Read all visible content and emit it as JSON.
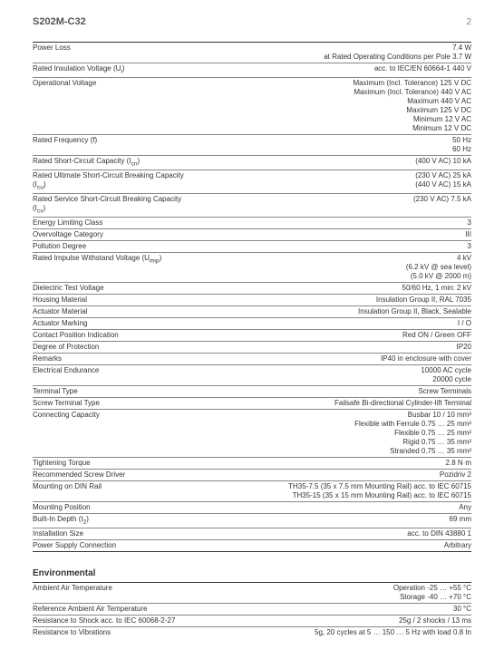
{
  "header": {
    "title": "S202M-C32",
    "page_number": "2"
  },
  "main_rows": [
    {
      "label": "Power Loss",
      "values": [
        "7.4 W",
        "at Rated Operating Conditions per Pole 3.7 W"
      ]
    },
    {
      "label": "Rated Insulation Voltage (U<sub>i</sub>)",
      "values": [
        "acc. to IEC/EN 60664-1 440 V"
      ]
    },
    {
      "label": "Operational Voltage",
      "values": [
        "Maximum (Incl. Tolerance) 125 V DC",
        "Maximum (Incl. Tolerance) 440 V AC",
        "Maximum 440 V AC",
        "Maximum 125 V DC",
        "Minimum 12 V AC",
        "Minimum 12 V DC"
      ]
    },
    {
      "label": "Rated Frequency (f)",
      "values": [
        "50 Hz",
        "60 Hz"
      ]
    },
    {
      "label": "Rated Short-Circuit Capacity (I<sub>cn</sub>)",
      "values": [
        "(400 V AC) 10 kA"
      ]
    },
    {
      "label": "Rated Ultimate Short-Circuit Breaking Capacity (I<sub>cu</sub>)",
      "values": [
        "(230 V AC) 25 kA",
        "(440 V AC) 15 kA"
      ]
    },
    {
      "label": "Rated Service Short-Circuit Breaking Capacity (I<sub>cs</sub>)",
      "values": [
        "(230 V AC) 7.5 kA"
      ]
    },
    {
      "label": "Energy Limiting Class",
      "values": [
        "3"
      ]
    },
    {
      "label": "Overvoltage Category",
      "values": [
        "III"
      ]
    },
    {
      "label": "Pollution Degree",
      "values": [
        "3"
      ]
    },
    {
      "label": "Rated Impulse Withstand Voltage (U<sub>imp</sub>)",
      "values": [
        "4 kV",
        "(6.2 kV @ sea level)",
        "(5.0 kV @ 2000 m)"
      ]
    },
    {
      "label": "Dielectric Test Voltage",
      "values": [
        "50/60 Hz, 1 min: 2 kV"
      ]
    },
    {
      "label": "Housing Material",
      "values": [
        "Insulation Group II, RAL 7035"
      ]
    },
    {
      "label": "Actuator Material",
      "values": [
        "Insulation Group II, Black, Sealable"
      ]
    },
    {
      "label": "Actuator Marking",
      "values": [
        "I / O"
      ]
    },
    {
      "label": "Contact Position Indication",
      "values": [
        "Red ON / Green OFF"
      ]
    },
    {
      "label": "Degree of Protection",
      "values": [
        "IP20"
      ]
    },
    {
      "label": "Remarks",
      "values": [
        "IP40 in enclosure with cover"
      ]
    },
    {
      "label": "Electrical Endurance",
      "values": [
        "10000 AC cycle",
        "20000 cycle"
      ]
    },
    {
      "label": "Terminal Type",
      "values": [
        "Screw Terminals"
      ]
    },
    {
      "label": "Screw Terminal Type",
      "values": [
        "Failsafe Bi-directional Cylinder-lift Terminal"
      ]
    },
    {
      "label": "Connecting Capacity",
      "values": [
        "Busbar 10 / 10 mm²",
        "Flexible with Ferrule 0.75 … 25 mm²",
        "Flexible 0.75 … 25 mm²",
        "Rigid 0.75 … 35 mm²",
        "Stranded 0.75 … 35 mm²"
      ]
    },
    {
      "label": "Tightening Torque",
      "values": [
        "2.8 N·m"
      ]
    },
    {
      "label": "Recommended Screw Driver",
      "values": [
        "Pozidriv 2"
      ]
    },
    {
      "label": "Mounting on DIN Rail",
      "values": [
        "TH35-7.5 (35 x 7.5 mm Mounting Rail) acc. to IEC 60715",
        "TH35-15 (35 x 15 mm Mounting Rail) acc. to IEC 60715"
      ]
    },
    {
      "label": "Mounting Position",
      "values": [
        "Any"
      ]
    },
    {
      "label": "Built-In Depth (t<sub>2</sub>)",
      "values": [
        "69 mm"
      ]
    },
    {
      "label": "Installation Size",
      "values": [
        "acc. to DIN 43880 1"
      ]
    },
    {
      "label": "Power Supply Connection",
      "values": [
        "Arbitrary"
      ]
    }
  ],
  "env_title": "Environmental",
  "env_rows": [
    {
      "label": "Ambient Air Temperature",
      "values": [
        "Operation -25 … +55 °C",
        "Storage -40 … +70 °C"
      ]
    },
    {
      "label": "Reference Ambient Air Temperature",
      "values": [
        "30 °C"
      ]
    },
    {
      "label": "Resistance to Shock acc. to IEC 60068-2-27",
      "values": [
        "25g / 2 shocks / 13 ms"
      ]
    },
    {
      "label": "Resistance to Vibrations",
      "values": [
        "5g, 20 cycles at 5 … 150 … 5 Hz with load 0.8 In"
      ]
    }
  ]
}
